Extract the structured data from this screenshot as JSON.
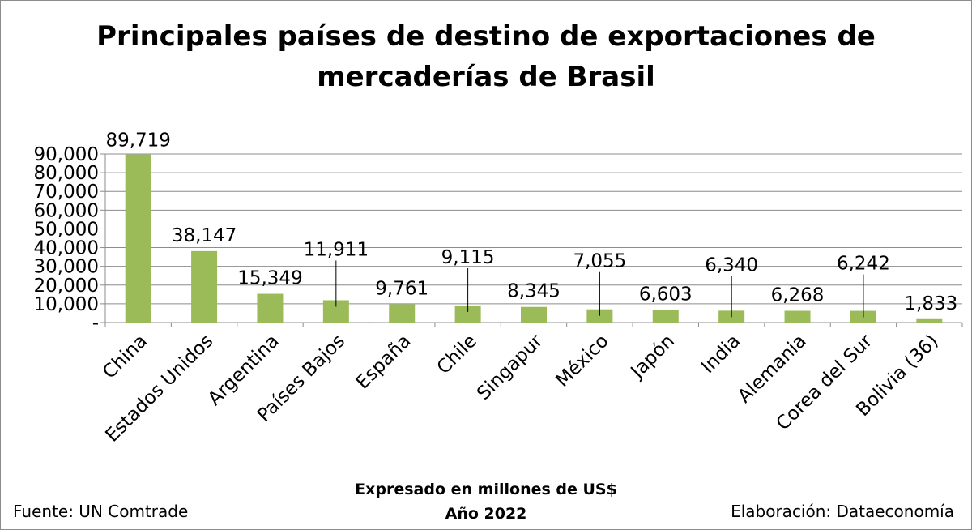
{
  "chart_data": {
    "type": "bar",
    "title_line1": "Principales países de destino de exportaciones de",
    "title_line2": "mercaderías de Brasil",
    "note_line1": "Expresado en millones de US$",
    "note_line2": "Año 2022",
    "source": "Fuente: UN Comtrade",
    "credit": "Elaboración: Dataeconomía",
    "categories": [
      "China",
      "Estados Unidos",
      "Argentina",
      "Países Bajos",
      "España",
      "Chile",
      "Singapur",
      "México",
      "Japón",
      "India",
      "Alemania",
      "Corea del Sur",
      "Bolivia (36)"
    ],
    "values": [
      89719,
      38147,
      15349,
      11911,
      9761,
      9115,
      8345,
      7055,
      6603,
      6340,
      6268,
      6242,
      1833
    ],
    "value_labels": [
      "89,719",
      "38,147",
      "15,349",
      "11,911",
      "9,761",
      "9,115",
      "8,345",
      "7,055",
      "6,603",
      "6,340",
      "6,268",
      "6,242",
      "1,833"
    ],
    "ylim": [
      0,
      90000
    ],
    "yticks": [
      0,
      10000,
      20000,
      30000,
      40000,
      50000,
      60000,
      70000,
      80000,
      90000
    ],
    "ytick_labels": [
      "-",
      "10,000",
      "20,000",
      "30,000",
      "40,000",
      "50,000",
      "60,000",
      "70,000",
      "80,000",
      "90,000"
    ],
    "bar_color": "#9bbb59",
    "grid": true,
    "legend": "none"
  }
}
